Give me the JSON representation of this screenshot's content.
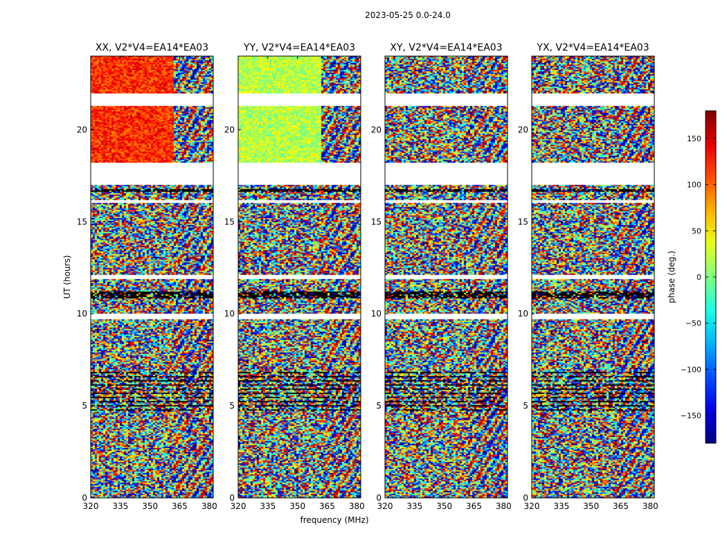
{
  "chart_data": {
    "type": "heatmap",
    "title": "2023-05-25 0.0-24.0",
    "xlabel": "frequency (MHz)",
    "ylabel": "UT (hours)",
    "xlim": [
      320,
      382
    ],
    "ylim": [
      0,
      24
    ],
    "xticks": [
      320,
      335,
      350,
      365,
      380
    ],
    "yticks": [
      0,
      5,
      10,
      15,
      20
    ],
    "panels": [
      {
        "title": "XX, V2*V4=EA14*EA03",
        "pol": "XX",
        "mean_phase_lowfreq_late_deg": 120
      },
      {
        "title": "YY, V2*V4=EA14*EA03",
        "pol": "YY",
        "mean_phase_lowfreq_late_deg": 20
      },
      {
        "title": "XY, V2*V4=EA14*EA03",
        "pol": "XY",
        "mean_phase_lowfreq_late_deg": null
      },
      {
        "title": "YX, V2*V4=EA14*EA03",
        "pol": "YX",
        "mean_phase_lowfreq_late_deg": null
      }
    ],
    "colorbar": {
      "label": "phase (deg.)",
      "range": [
        -180,
        180
      ],
      "ticks": [
        150,
        100,
        50,
        0,
        -50,
        -100,
        -150
      ],
      "colormap": "jet"
    },
    "flagged_bands_hours": [
      [
        17.0,
        18.2
      ],
      [
        21.3,
        22.0
      ],
      [
        11.9,
        12.1
      ],
      [
        9.7,
        10.0
      ],
      [
        16.0,
        16.2
      ]
    ],
    "coherent_region_start_mhz": 362
  }
}
